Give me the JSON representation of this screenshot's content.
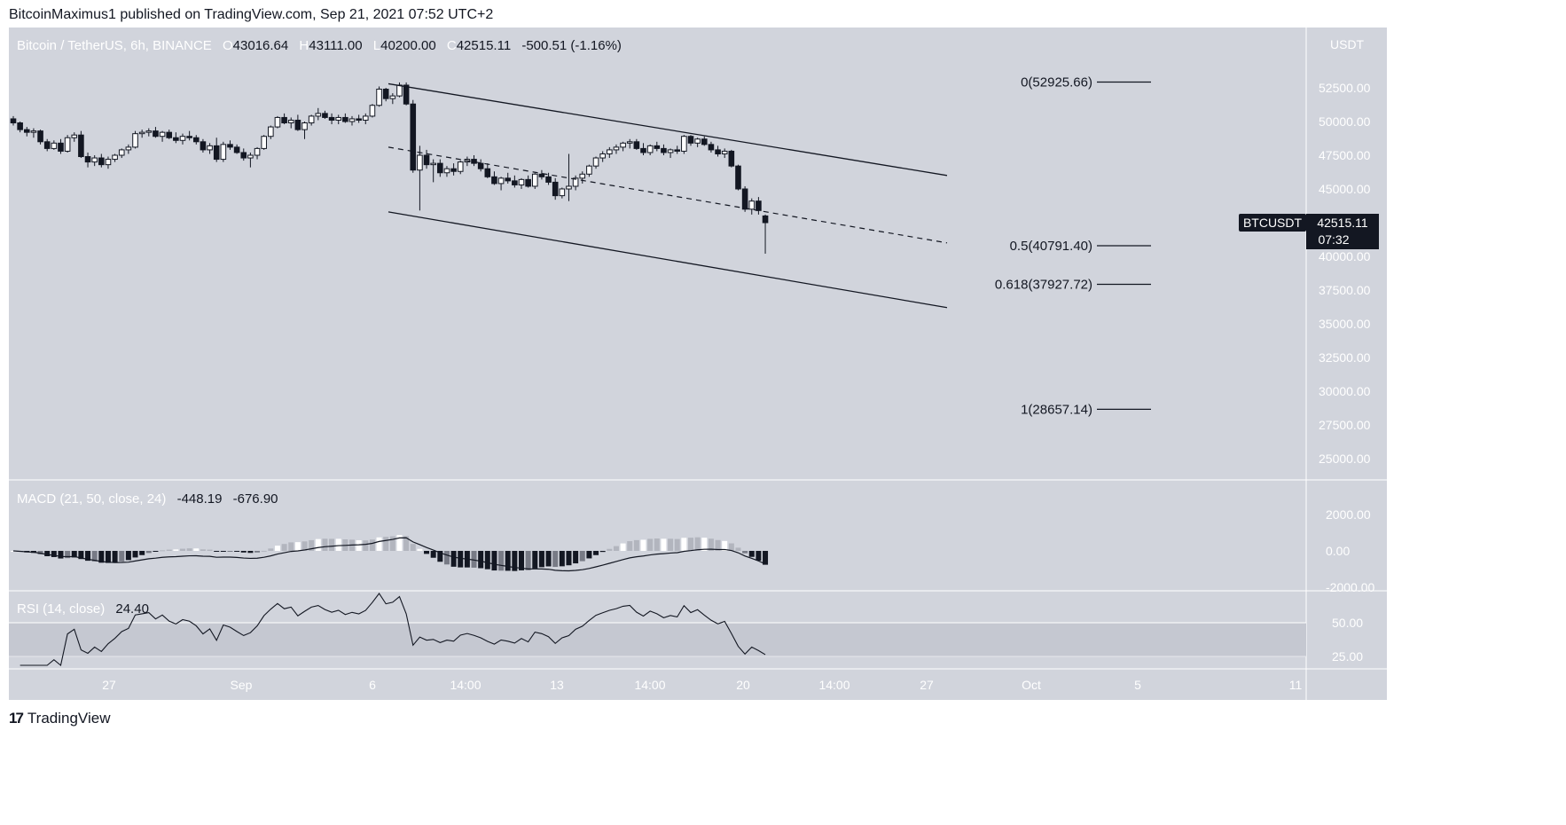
{
  "header": {
    "publisher": "BitcoinMaximus1 published on TradingView.com, Sep 21, 2021 07:52 UTC+2"
  },
  "legend": {
    "symbol": "Bitcoin / TetherUS, 6h, BINANCE",
    "open_label": "O",
    "open": "43016.64",
    "high_label": "H",
    "high": "43111.00",
    "low_label": "L",
    "low": "40200.00",
    "close_label": "C",
    "close": "42515.11",
    "change": "-500.51 (-1.16%)"
  },
  "price_axis": {
    "currency": "USDT",
    "ticks": [
      "52500.00",
      "50000.00",
      "47500.00",
      "45000.00",
      "42500.00",
      "40000.00",
      "37500.00",
      "35000.00",
      "32500.00",
      "30000.00",
      "27500.00",
      "25000.00"
    ],
    "badge_symbol": "BTCUSDT",
    "badge_price": "42515.11",
    "badge_timer": "07:32"
  },
  "fib_levels": [
    {
      "label": "0(52925.66)",
      "price": 52925.66
    },
    {
      "label": "0.5(40791.40)",
      "price": 40791.4
    },
    {
      "label": "0.618(37927.72)",
      "price": 37927.72
    },
    {
      "label": "1(28657.14)",
      "price": 28657.14
    }
  ],
  "macd": {
    "title": "MACD (21, 50, close, 24)",
    "v1": "-448.19",
    "v2": "-676.90",
    "ticks": [
      "2000.00",
      "0.00",
      "-2000.00"
    ]
  },
  "rsi": {
    "title": "RSI (14, close)",
    "value": "24.40",
    "ticks": [
      "50.00",
      "25.00"
    ]
  },
  "time_axis": [
    "27",
    "Sep",
    "6",
    "14:00",
    "13",
    "14:00",
    "20",
    "14:00",
    "27",
    "Oct",
    "5",
    "11"
  ],
  "footer": {
    "brand": "TradingView"
  },
  "colors": {
    "bg": "#d1d4dc",
    "candle_up": "#ffffff",
    "candle_down": "#131722",
    "badge": "#131722"
  },
  "chart_data": {
    "type": "candlestick",
    "title": "Bitcoin / TetherUS, 6h, BINANCE",
    "ylim": [
      24000,
      54000
    ],
    "channel": {
      "upper": [
        {
          "x": "Sep 7",
          "y": 52800
        },
        {
          "x": "Sep 28",
          "y": 46000
        }
      ],
      "middle": [
        {
          "x": "Sep 7",
          "y": 48100
        },
        {
          "x": "Sep 28",
          "y": 41000
        }
      ],
      "lower": [
        {
          "x": "Sep 7",
          "y": 43300
        },
        {
          "x": "Sep 28",
          "y": 36200
        }
      ]
    },
    "candles_approx": [
      [
        50200,
        50400,
        49700,
        49900
      ],
      [
        49900,
        50000,
        49200,
        49400
      ],
      [
        49400,
        49600,
        48900,
        49200
      ],
      [
        49200,
        49500,
        48800,
        49300
      ],
      [
        49300,
        49400,
        48300,
        48500
      ],
      [
        48500,
        48700,
        47800,
        48000
      ],
      [
        48000,
        48600,
        47900,
        48400
      ],
      [
        48400,
        48700,
        47600,
        47800
      ],
      [
        47800,
        49000,
        47700,
        48800
      ],
      [
        48800,
        49200,
        48500,
        49000
      ],
      [
        49000,
        49300,
        47300,
        47400
      ],
      [
        47400,
        47700,
        46600,
        47000
      ],
      [
        47000,
        47500,
        46700,
        47300
      ],
      [
        47300,
        47600,
        46600,
        46800
      ],
      [
        46800,
        47400,
        46500,
        47200
      ],
      [
        47200,
        47600,
        47000,
        47500
      ],
      [
        47500,
        48000,
        47300,
        47900
      ],
      [
        47900,
        48300,
        47600,
        48100
      ],
      [
        48100,
        49300,
        48000,
        49100
      ],
      [
        49100,
        49400,
        48800,
        49200
      ],
      [
        49200,
        49500,
        48900,
        49300
      ],
      [
        49300,
        49600,
        48800,
        48900
      ],
      [
        48900,
        49300,
        48500,
        49200
      ],
      [
        49200,
        49400,
        48700,
        48800
      ],
      [
        48800,
        49200,
        48400,
        48600
      ],
      [
        48600,
        49100,
        48300,
        48900
      ],
      [
        48900,
        49300,
        48600,
        48800
      ],
      [
        48800,
        49000,
        48300,
        48500
      ],
      [
        48500,
        48700,
        47700,
        47900
      ],
      [
        47900,
        48400,
        47600,
        48200
      ],
      [
        48200,
        48800,
        47000,
        47200
      ],
      [
        47200,
        48500,
        47000,
        48300
      ],
      [
        48300,
        48600,
        47900,
        48100
      ],
      [
        48100,
        48300,
        47600,
        47700
      ],
      [
        47700,
        48000,
        47100,
        47300
      ],
      [
        47300,
        47700,
        46600,
        47500
      ],
      [
        47500,
        48100,
        47200,
        48000
      ],
      [
        48000,
        49000,
        47900,
        48900
      ],
      [
        48900,
        49700,
        48700,
        49600
      ],
      [
        49600,
        50400,
        49500,
        50300
      ],
      [
        50300,
        50600,
        49800,
        49900
      ],
      [
        49900,
        50300,
        49500,
        50100
      ],
      [
        50100,
        50500,
        49300,
        49400
      ],
      [
        49400,
        50000,
        48700,
        49900
      ],
      [
        49900,
        50500,
        49700,
        50400
      ],
      [
        50400,
        51000,
        50100,
        50600
      ],
      [
        50600,
        50800,
        50200,
        50300
      ],
      [
        50300,
        50600,
        49800,
        50100
      ],
      [
        50100,
        50500,
        49800,
        50300
      ],
      [
        50300,
        50600,
        49900,
        50000
      ],
      [
        50000,
        50400,
        49700,
        50200
      ],
      [
        50200,
        50500,
        49900,
        50100
      ],
      [
        50100,
        50600,
        49800,
        50400
      ],
      [
        50400,
        51300,
        50300,
        51200
      ],
      [
        51200,
        52600,
        51100,
        52400
      ],
      [
        52400,
        52500,
        51500,
        51700
      ],
      [
        51700,
        52100,
        51300,
        51900
      ],
      [
        51900,
        52900,
        51800,
        52700
      ],
      [
        52700,
        52900,
        51200,
        51300
      ],
      [
        51300,
        51600,
        46200,
        46400
      ],
      [
        46400,
        48200,
        43400,
        47500
      ],
      [
        47500,
        47900,
        46500,
        46800
      ],
      [
        46800,
        47200,
        45500,
        46900
      ],
      [
        46900,
        47200,
        45900,
        46200
      ],
      [
        46200,
        46700,
        45900,
        46500
      ],
      [
        46500,
        46900,
        46000,
        46300
      ],
      [
        46300,
        47100,
        46100,
        47000
      ],
      [
        47000,
        47400,
        46700,
        47200
      ],
      [
        47200,
        47500,
        46700,
        46900
      ],
      [
        46900,
        47200,
        46300,
        46500
      ],
      [
        46500,
        46900,
        45800,
        45900
      ],
      [
        45900,
        46300,
        45300,
        45400
      ],
      [
        45400,
        45900,
        44900,
        45800
      ],
      [
        45800,
        46200,
        45400,
        45600
      ],
      [
        45600,
        46000,
        45100,
        45300
      ],
      [
        45300,
        45800,
        45000,
        45700
      ],
      [
        45700,
        46000,
        45100,
        45200
      ],
      [
        45200,
        46200,
        45000,
        46100
      ],
      [
        46100,
        46400,
        45700,
        45900
      ],
      [
        45900,
        46200,
        45300,
        45500
      ],
      [
        45500,
        45800,
        44200,
        44500
      ],
      [
        44500,
        45100,
        44300,
        45000
      ],
      [
        45000,
        47600,
        44100,
        45200
      ],
      [
        45200,
        46000,
        44900,
        45800
      ],
      [
        45800,
        46300,
        45400,
        46100
      ],
      [
        46100,
        46800,
        45900,
        46700
      ],
      [
        46700,
        47400,
        46500,
        47300
      ],
      [
        47300,
        47800,
        47000,
        47600
      ],
      [
        47600,
        48100,
        47300,
        47900
      ],
      [
        47900,
        48300,
        47600,
        48100
      ],
      [
        48100,
        48500,
        47800,
        48400
      ],
      [
        48400,
        48700,
        48000,
        48500
      ],
      [
        48500,
        48700,
        47900,
        48000
      ],
      [
        48000,
        48400,
        47500,
        47700
      ],
      [
        47700,
        48300,
        47500,
        48200
      ],
      [
        48200,
        48500,
        47800,
        48000
      ],
      [
        48000,
        48300,
        47500,
        47700
      ],
      [
        47700,
        48000,
        47300,
        47900
      ],
      [
        47900,
        48200,
        47600,
        47800
      ],
      [
        47800,
        49000,
        47600,
        48900
      ],
      [
        48900,
        49000,
        48200,
        48400
      ],
      [
        48400,
        48800,
        48100,
        48700
      ],
      [
        48700,
        48900,
        48200,
        48300
      ],
      [
        48300,
        48500,
        47700,
        47900
      ],
      [
        47900,
        48200,
        47400,
        47600
      ],
      [
        47600,
        48000,
        47300,
        47800
      ],
      [
        47800,
        47900,
        46600,
        46700
      ],
      [
        46700,
        46800,
        44900,
        45000
      ],
      [
        45000,
        45200,
        43300,
        43500
      ],
      [
        43500,
        44300,
        43100,
        44100
      ],
      [
        44100,
        44400,
        43100,
        43400
      ],
      [
        43000,
        43100,
        40200,
        42500
      ]
    ]
  }
}
